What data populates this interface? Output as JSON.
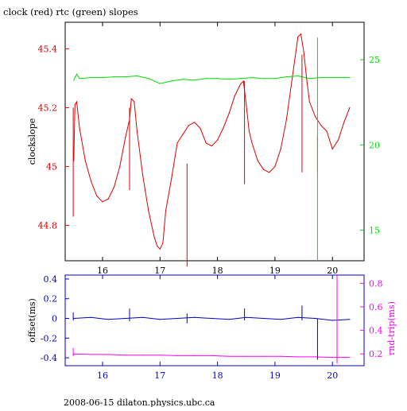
{
  "title": "clock (red) rtc (green) slopes",
  "footer": "2008-06-15 dilaton.physics.ubc.ca",
  "colors": {
    "clock": "#dd0000",
    "rtc": "#00dd00",
    "offset": "#0000cc",
    "rndtrip": "#ff00ff",
    "frame": "#000000"
  },
  "chart_data": [
    {
      "type": "line",
      "title": "clock (red) rtc (green) slopes",
      "xlabel": "",
      "ylabel": "clockslope",
      "y2label": "",
      "xlim": [
        15.35,
        20.55
      ],
      "ylim": [
        44.68,
        45.49
      ],
      "y2lim": [
        13.2,
        27.2
      ],
      "xticks": [
        16,
        17,
        18,
        19,
        20
      ],
      "yticks": [
        44.8,
        45,
        45.2,
        45.4
      ],
      "y2ticks": [
        15,
        20,
        25
      ],
      "ytick_labels": [
        "44.8",
        "45",
        "45.2",
        "45.4"
      ],
      "y2tick_labels": [
        "15",
        "20",
        "25"
      ],
      "xtick_labels": [
        "16",
        "17",
        "18",
        "19",
        "20"
      ],
      "series": [
        {
          "axis": "left",
          "color": "#dd0000",
          "x": [
            15.5,
            15.52,
            15.55,
            15.6,
            15.7,
            15.8,
            15.9,
            16.0,
            16.1,
            16.2,
            16.3,
            16.4,
            16.47,
            16.5,
            16.55,
            16.6,
            16.7,
            16.8,
            16.9,
            16.95,
            17.0,
            17.05,
            17.1,
            17.2,
            17.3,
            17.4,
            17.5,
            17.6,
            17.7,
            17.8,
            17.9,
            18.0,
            18.1,
            18.2,
            18.3,
            18.4,
            18.45,
            18.5,
            18.55,
            18.6,
            18.7,
            18.8,
            18.9,
            19.0,
            19.1,
            19.2,
            19.3,
            19.4,
            19.45,
            19.5,
            19.55,
            19.6,
            19.7,
            19.8,
            19.9,
            20.0,
            20.1,
            20.2,
            20.3
          ],
          "y": [
            45.02,
            45.21,
            45.22,
            45.13,
            45.02,
            44.95,
            44.9,
            44.88,
            44.89,
            44.93,
            45.0,
            45.1,
            45.16,
            45.23,
            45.22,
            45.12,
            44.97,
            44.85,
            44.76,
            44.73,
            44.72,
            44.74,
            44.85,
            44.96,
            45.08,
            45.11,
            45.14,
            45.15,
            45.13,
            45.08,
            45.07,
            45.09,
            45.13,
            45.18,
            45.24,
            45.28,
            45.29,
            45.21,
            45.12,
            45.08,
            45.02,
            44.99,
            44.98,
            45.0,
            45.06,
            45.16,
            45.3,
            45.44,
            45.45,
            45.39,
            45.3,
            45.22,
            45.17,
            45.14,
            45.12,
            45.06,
            45.09,
            45.15,
            45.2
          ]
        },
        {
          "axis": "right",
          "color": "#00dd00",
          "x": [
            15.5,
            15.55,
            15.6,
            15.8,
            16.0,
            16.2,
            16.4,
            16.6,
            16.8,
            17.0,
            17.2,
            17.4,
            17.6,
            17.8,
            18.0,
            18.2,
            18.4,
            18.6,
            18.8,
            19.0,
            19.2,
            19.4,
            19.6,
            19.8,
            20.0,
            20.2,
            20.3
          ],
          "y": [
            23.8,
            24.15,
            23.9,
            23.95,
            23.95,
            24.0,
            24.0,
            24.05,
            23.9,
            23.6,
            23.75,
            23.85,
            23.8,
            23.9,
            23.9,
            23.85,
            23.9,
            23.95,
            23.9,
            23.9,
            24.0,
            24.05,
            23.9,
            23.95,
            23.95,
            23.95,
            23.95
          ]
        }
      ],
      "spikes_left": [
        {
          "x": 15.49,
          "y_min": 44.83,
          "y_max": 45.2
        },
        {
          "x": 16.47,
          "y_min": 44.92,
          "y_max": 45.2
        },
        {
          "x": 17.47,
          "y_min": 44.66,
          "y_max": 45.01
        },
        {
          "x": 18.47,
          "y_min": 44.94,
          "y_max": 45.29
        },
        {
          "x": 19.47,
          "y_min": 44.98,
          "y_max": 45.38
        },
        {
          "x": 19.74,
          "y_min": 44.98,
          "y_max": 45.1
        }
      ],
      "spikes_right": [
        {
          "x": 19.74,
          "y_min": 13.2,
          "y_max": 26.3
        }
      ]
    },
    {
      "type": "line",
      "xlabel": "",
      "ylabel": "offset(ms)",
      "y2label": "rnd-trip(ms)",
      "xlim": [
        15.35,
        20.55
      ],
      "ylim": [
        -0.48,
        0.44
      ],
      "y2lim": [
        0.1,
        0.87
      ],
      "xticks": [
        16,
        17,
        18,
        19,
        20
      ],
      "yticks": [
        -0.4,
        -0.2,
        0,
        0.2,
        0.4
      ],
      "y2ticks": [
        0.2,
        0.4,
        0.6,
        0.8
      ],
      "ytick_labels": [
        "-0.4",
        "-0.2",
        "0",
        "0.2",
        "0.4"
      ],
      "y2tick_labels": [
        "0.2",
        "0.4",
        "0.6",
        "0.8"
      ],
      "xtick_labels": [
        "16",
        "17",
        "18",
        "19",
        "20"
      ],
      "series": [
        {
          "axis": "left",
          "color": "#0000cc",
          "x": [
            15.5,
            15.8,
            16.1,
            16.4,
            16.7,
            17.0,
            17.3,
            17.6,
            17.9,
            18.2,
            18.5,
            18.8,
            19.1,
            19.4,
            19.7,
            20.0,
            20.3
          ],
          "y": [
            0.0,
            0.01,
            -0.01,
            0.0,
            0.01,
            -0.01,
            0.0,
            0.01,
            0.0,
            -0.01,
            0.01,
            0.0,
            -0.01,
            0.01,
            0.0,
            -0.02,
            -0.01
          ]
        },
        {
          "axis": "right",
          "color": "#ff00ff",
          "x": [
            15.5,
            15.8,
            16.1,
            16.4,
            16.7,
            17.0,
            17.3,
            17.6,
            17.9,
            18.2,
            18.5,
            18.8,
            19.1,
            19.4,
            19.7,
            20.0,
            20.3
          ],
          "y": [
            0.2,
            0.195,
            0.195,
            0.19,
            0.19,
            0.19,
            0.185,
            0.185,
            0.185,
            0.18,
            0.18,
            0.18,
            0.18,
            0.175,
            0.175,
            0.17,
            0.17
          ]
        }
      ],
      "spikes_left": [
        {
          "x": 15.49,
          "y_min": -0.02,
          "y_max": 0.06
        },
        {
          "x": 16.47,
          "y_min": -0.03,
          "y_max": 0.1
        },
        {
          "x": 17.47,
          "y_min": -0.05,
          "y_max": 0.05
        },
        {
          "x": 18.47,
          "y_min": -0.02,
          "y_max": 0.1
        },
        {
          "x": 19.47,
          "y_min": -0.02,
          "y_max": 0.13
        },
        {
          "x": 19.74,
          "y_min": -0.42,
          "y_max": 0.0
        },
        {
          "x": 20.08,
          "y_min": -0.45,
          "y_max": 0.32
        }
      ],
      "spikes_right": [
        {
          "x": 20.08,
          "y_min": 0.12,
          "y_max": 0.87
        },
        {
          "x": 15.49,
          "y_min": 0.18,
          "y_max": 0.25
        }
      ]
    }
  ]
}
